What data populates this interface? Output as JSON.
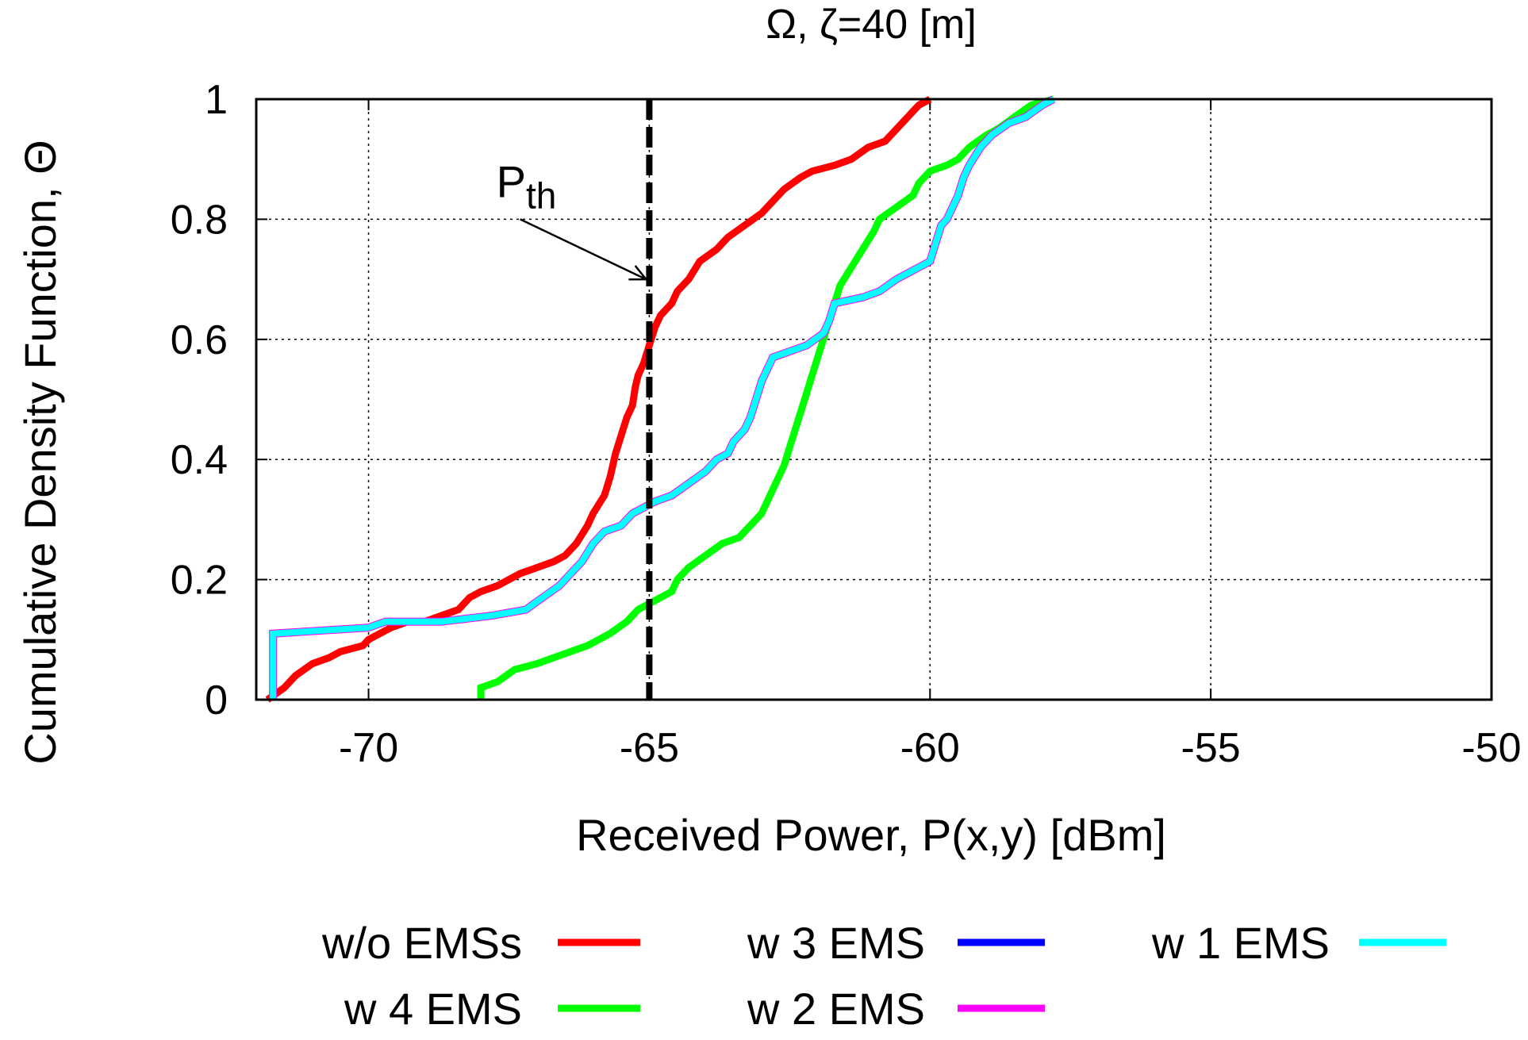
{
  "chart_data": {
    "type": "line",
    "title": "Ω, ζ=40 [m]",
    "xlabel": "Received Power, P(x,y) [dBm]",
    "ylabel": "Cumulative Density Function, Θ",
    "xlim": [
      -72,
      -50
    ],
    "ylim": [
      0,
      1
    ],
    "x_ticks": [
      "-70",
      "-65",
      "-60",
      "-55",
      "-50"
    ],
    "x_tick_values": [
      -70,
      -65,
      -60,
      -55,
      -50
    ],
    "y_ticks": [
      "0",
      "0.2",
      "0.4",
      "0.6",
      "0.8",
      "1"
    ],
    "y_tick_values": [
      0,
      0.2,
      0.4,
      0.6,
      0.8,
      1
    ],
    "grid": true,
    "legend_position": "bottom",
    "annotation": {
      "text": "P",
      "subscript": "th",
      "threshold_x": -65,
      "arrow_tip": [
        -65,
        0.7
      ],
      "arrow_tail": [
        -67.3,
        0.8
      ]
    },
    "series": [
      {
        "name": "w/o EMSs",
        "color": "#ff0000",
        "points": [
          [
            -71.8,
            0.0
          ],
          [
            -71.5,
            0.02
          ],
          [
            -71.3,
            0.04
          ],
          [
            -71.0,
            0.06
          ],
          [
            -70.7,
            0.07
          ],
          [
            -70.5,
            0.08
          ],
          [
            -70.1,
            0.09
          ],
          [
            -70.0,
            0.1
          ],
          [
            -69.6,
            0.12
          ],
          [
            -69.3,
            0.13
          ],
          [
            -69.0,
            0.13
          ],
          [
            -68.7,
            0.14
          ],
          [
            -68.4,
            0.15
          ],
          [
            -68.2,
            0.17
          ],
          [
            -68.0,
            0.18
          ],
          [
            -67.7,
            0.19
          ],
          [
            -67.5,
            0.2
          ],
          [
            -67.3,
            0.21
          ],
          [
            -67.0,
            0.22
          ],
          [
            -66.7,
            0.23
          ],
          [
            -66.5,
            0.24
          ],
          [
            -66.3,
            0.26
          ],
          [
            -66.1,
            0.29
          ],
          [
            -66.0,
            0.31
          ],
          [
            -65.8,
            0.34
          ],
          [
            -65.7,
            0.37
          ],
          [
            -65.6,
            0.41
          ],
          [
            -65.5,
            0.44
          ],
          [
            -65.4,
            0.47
          ],
          [
            -65.3,
            0.49
          ],
          [
            -65.25,
            0.52
          ],
          [
            -65.2,
            0.54
          ],
          [
            -65.1,
            0.56
          ],
          [
            -65.0,
            0.59
          ],
          [
            -64.9,
            0.62
          ],
          [
            -64.8,
            0.64
          ],
          [
            -64.6,
            0.66
          ],
          [
            -64.5,
            0.68
          ],
          [
            -64.3,
            0.7
          ],
          [
            -64.1,
            0.73
          ],
          [
            -63.8,
            0.75
          ],
          [
            -63.6,
            0.77
          ],
          [
            -63.3,
            0.79
          ],
          [
            -63.0,
            0.81
          ],
          [
            -62.8,
            0.83
          ],
          [
            -62.6,
            0.85
          ],
          [
            -62.3,
            0.87
          ],
          [
            -62.1,
            0.88
          ],
          [
            -61.7,
            0.89
          ],
          [
            -61.4,
            0.9
          ],
          [
            -61.1,
            0.92
          ],
          [
            -60.8,
            0.93
          ],
          [
            -60.6,
            0.95
          ],
          [
            -60.4,
            0.97
          ],
          [
            -60.2,
            0.99
          ],
          [
            -60.0,
            1.0
          ]
        ]
      },
      {
        "name": "w 4 EMS",
        "color": "#00ff00",
        "points": [
          [
            -68.0,
            0.0
          ],
          [
            -68.0,
            0.02
          ],
          [
            -67.7,
            0.03
          ],
          [
            -67.4,
            0.05
          ],
          [
            -67.0,
            0.06
          ],
          [
            -66.7,
            0.07
          ],
          [
            -66.4,
            0.08
          ],
          [
            -66.1,
            0.09
          ],
          [
            -65.7,
            0.11
          ],
          [
            -65.4,
            0.13
          ],
          [
            -65.2,
            0.15
          ],
          [
            -65.0,
            0.16
          ],
          [
            -64.8,
            0.17
          ],
          [
            -64.6,
            0.18
          ],
          [
            -64.5,
            0.2
          ],
          [
            -64.3,
            0.22
          ],
          [
            -64.0,
            0.24
          ],
          [
            -63.7,
            0.26
          ],
          [
            -63.4,
            0.27
          ],
          [
            -63.2,
            0.29
          ],
          [
            -63.0,
            0.31
          ],
          [
            -62.9,
            0.33
          ],
          [
            -62.8,
            0.35
          ],
          [
            -62.7,
            0.37
          ],
          [
            -62.6,
            0.39
          ],
          [
            -62.5,
            0.42
          ],
          [
            -62.4,
            0.45
          ],
          [
            -62.3,
            0.48
          ],
          [
            -62.2,
            0.51
          ],
          [
            -62.1,
            0.54
          ],
          [
            -62.0,
            0.57
          ],
          [
            -61.9,
            0.6
          ],
          [
            -61.8,
            0.63
          ],
          [
            -61.7,
            0.66
          ],
          [
            -61.6,
            0.69
          ],
          [
            -61.4,
            0.72
          ],
          [
            -61.2,
            0.75
          ],
          [
            -61.0,
            0.78
          ],
          [
            -60.9,
            0.8
          ],
          [
            -60.6,
            0.82
          ],
          [
            -60.3,
            0.84
          ],
          [
            -60.2,
            0.86
          ],
          [
            -60.0,
            0.88
          ],
          [
            -59.7,
            0.89
          ],
          [
            -59.5,
            0.9
          ],
          [
            -59.3,
            0.92
          ],
          [
            -59.0,
            0.94
          ],
          [
            -58.8,
            0.95
          ],
          [
            -58.5,
            0.97
          ],
          [
            -58.2,
            0.99
          ],
          [
            -57.8,
            1.0
          ]
        ]
      },
      {
        "name": "w 3 EMS",
        "color": "#0000ff",
        "points": [
          [
            -71.7,
            0.0
          ],
          [
            -71.7,
            0.11
          ],
          [
            -70.0,
            0.12
          ],
          [
            -69.7,
            0.13
          ],
          [
            -68.7,
            0.13
          ],
          [
            -67.8,
            0.14
          ],
          [
            -67.2,
            0.15
          ],
          [
            -66.9,
            0.17
          ],
          [
            -66.6,
            0.19
          ],
          [
            -66.4,
            0.21
          ],
          [
            -66.2,
            0.23
          ],
          [
            -66.0,
            0.26
          ],
          [
            -65.8,
            0.28
          ],
          [
            -65.5,
            0.29
          ],
          [
            -65.3,
            0.31
          ],
          [
            -65.1,
            0.32
          ],
          [
            -64.9,
            0.33
          ],
          [
            -64.6,
            0.34
          ],
          [
            -64.3,
            0.36
          ],
          [
            -64.0,
            0.38
          ],
          [
            -63.8,
            0.4
          ],
          [
            -63.6,
            0.41
          ],
          [
            -63.5,
            0.43
          ],
          [
            -63.3,
            0.45
          ],
          [
            -63.2,
            0.47
          ],
          [
            -63.1,
            0.5
          ],
          [
            -63.0,
            0.53
          ],
          [
            -62.9,
            0.55
          ],
          [
            -62.8,
            0.57
          ],
          [
            -62.5,
            0.58
          ],
          [
            -62.2,
            0.59
          ],
          [
            -61.9,
            0.61
          ],
          [
            -61.8,
            0.63
          ],
          [
            -61.7,
            0.66
          ],
          [
            -61.2,
            0.67
          ],
          [
            -60.9,
            0.68
          ],
          [
            -60.6,
            0.7
          ],
          [
            -60.2,
            0.72
          ],
          [
            -60.0,
            0.73
          ],
          [
            -59.9,
            0.76
          ],
          [
            -59.8,
            0.79
          ],
          [
            -59.7,
            0.8
          ],
          [
            -59.6,
            0.82
          ],
          [
            -59.5,
            0.84
          ],
          [
            -59.4,
            0.87
          ],
          [
            -59.3,
            0.89
          ],
          [
            -59.1,
            0.92
          ],
          [
            -58.9,
            0.94
          ],
          [
            -58.6,
            0.96
          ],
          [
            -58.3,
            0.97
          ],
          [
            -58.0,
            0.99
          ],
          [
            -57.8,
            1.0
          ]
        ]
      },
      {
        "name": "w 2 EMS",
        "color": "#ff00ff",
        "points": [
          [
            -71.7,
            0.0
          ],
          [
            -71.7,
            0.11
          ],
          [
            -70.0,
            0.12
          ],
          [
            -69.7,
            0.13
          ],
          [
            -68.7,
            0.13
          ],
          [
            -67.8,
            0.14
          ],
          [
            -67.2,
            0.15
          ],
          [
            -66.9,
            0.17
          ],
          [
            -66.6,
            0.19
          ],
          [
            -66.4,
            0.21
          ],
          [
            -66.2,
            0.23
          ],
          [
            -66.0,
            0.26
          ],
          [
            -65.8,
            0.28
          ],
          [
            -65.5,
            0.29
          ],
          [
            -65.3,
            0.31
          ],
          [
            -65.1,
            0.32
          ],
          [
            -64.9,
            0.33
          ],
          [
            -64.6,
            0.34
          ],
          [
            -64.3,
            0.36
          ],
          [
            -64.0,
            0.38
          ],
          [
            -63.8,
            0.4
          ],
          [
            -63.6,
            0.41
          ],
          [
            -63.5,
            0.43
          ],
          [
            -63.3,
            0.45
          ],
          [
            -63.2,
            0.47
          ],
          [
            -63.1,
            0.5
          ],
          [
            -63.0,
            0.53
          ],
          [
            -62.9,
            0.55
          ],
          [
            -62.8,
            0.57
          ],
          [
            -62.5,
            0.58
          ],
          [
            -62.2,
            0.59
          ],
          [
            -61.9,
            0.61
          ],
          [
            -61.8,
            0.63
          ],
          [
            -61.7,
            0.66
          ],
          [
            -61.2,
            0.67
          ],
          [
            -60.9,
            0.68
          ],
          [
            -60.6,
            0.7
          ],
          [
            -60.2,
            0.72
          ],
          [
            -60.0,
            0.73
          ],
          [
            -59.9,
            0.76
          ],
          [
            -59.8,
            0.79
          ],
          [
            -59.7,
            0.8
          ],
          [
            -59.6,
            0.82
          ],
          [
            -59.5,
            0.84
          ],
          [
            -59.4,
            0.87
          ],
          [
            -59.3,
            0.89
          ],
          [
            -59.1,
            0.92
          ],
          [
            -58.9,
            0.94
          ],
          [
            -58.6,
            0.96
          ],
          [
            -58.3,
            0.97
          ],
          [
            -58.0,
            0.99
          ],
          [
            -57.8,
            1.0
          ]
        ]
      },
      {
        "name": "w 1 EMS",
        "color": "#00ffff",
        "points": [
          [
            -71.7,
            0.0
          ],
          [
            -71.7,
            0.11
          ],
          [
            -70.0,
            0.12
          ],
          [
            -69.7,
            0.13
          ],
          [
            -68.7,
            0.13
          ],
          [
            -67.8,
            0.14
          ],
          [
            -67.2,
            0.15
          ],
          [
            -66.9,
            0.17
          ],
          [
            -66.6,
            0.19
          ],
          [
            -66.4,
            0.21
          ],
          [
            -66.2,
            0.23
          ],
          [
            -66.0,
            0.26
          ],
          [
            -65.8,
            0.28
          ],
          [
            -65.5,
            0.29
          ],
          [
            -65.3,
            0.31
          ],
          [
            -65.1,
            0.32
          ],
          [
            -64.9,
            0.33
          ],
          [
            -64.6,
            0.34
          ],
          [
            -64.3,
            0.36
          ],
          [
            -64.0,
            0.38
          ],
          [
            -63.8,
            0.4
          ],
          [
            -63.6,
            0.41
          ],
          [
            -63.5,
            0.43
          ],
          [
            -63.3,
            0.45
          ],
          [
            -63.2,
            0.47
          ],
          [
            -63.1,
            0.5
          ],
          [
            -63.0,
            0.53
          ],
          [
            -62.9,
            0.55
          ],
          [
            -62.8,
            0.57
          ],
          [
            -62.5,
            0.58
          ],
          [
            -62.2,
            0.59
          ],
          [
            -61.9,
            0.61
          ],
          [
            -61.8,
            0.63
          ],
          [
            -61.7,
            0.66
          ],
          [
            -61.2,
            0.67
          ],
          [
            -60.9,
            0.68
          ],
          [
            -60.6,
            0.7
          ],
          [
            -60.2,
            0.72
          ],
          [
            -60.0,
            0.73
          ],
          [
            -59.9,
            0.76
          ],
          [
            -59.8,
            0.79
          ],
          [
            -59.7,
            0.8
          ],
          [
            -59.6,
            0.82
          ],
          [
            -59.5,
            0.84
          ],
          [
            -59.4,
            0.87
          ],
          [
            -59.3,
            0.89
          ],
          [
            -59.1,
            0.92
          ],
          [
            -58.9,
            0.94
          ],
          [
            -58.6,
            0.96
          ],
          [
            -58.3,
            0.97
          ],
          [
            -58.0,
            0.99
          ],
          [
            -57.8,
            1.0
          ]
        ]
      }
    ]
  }
}
